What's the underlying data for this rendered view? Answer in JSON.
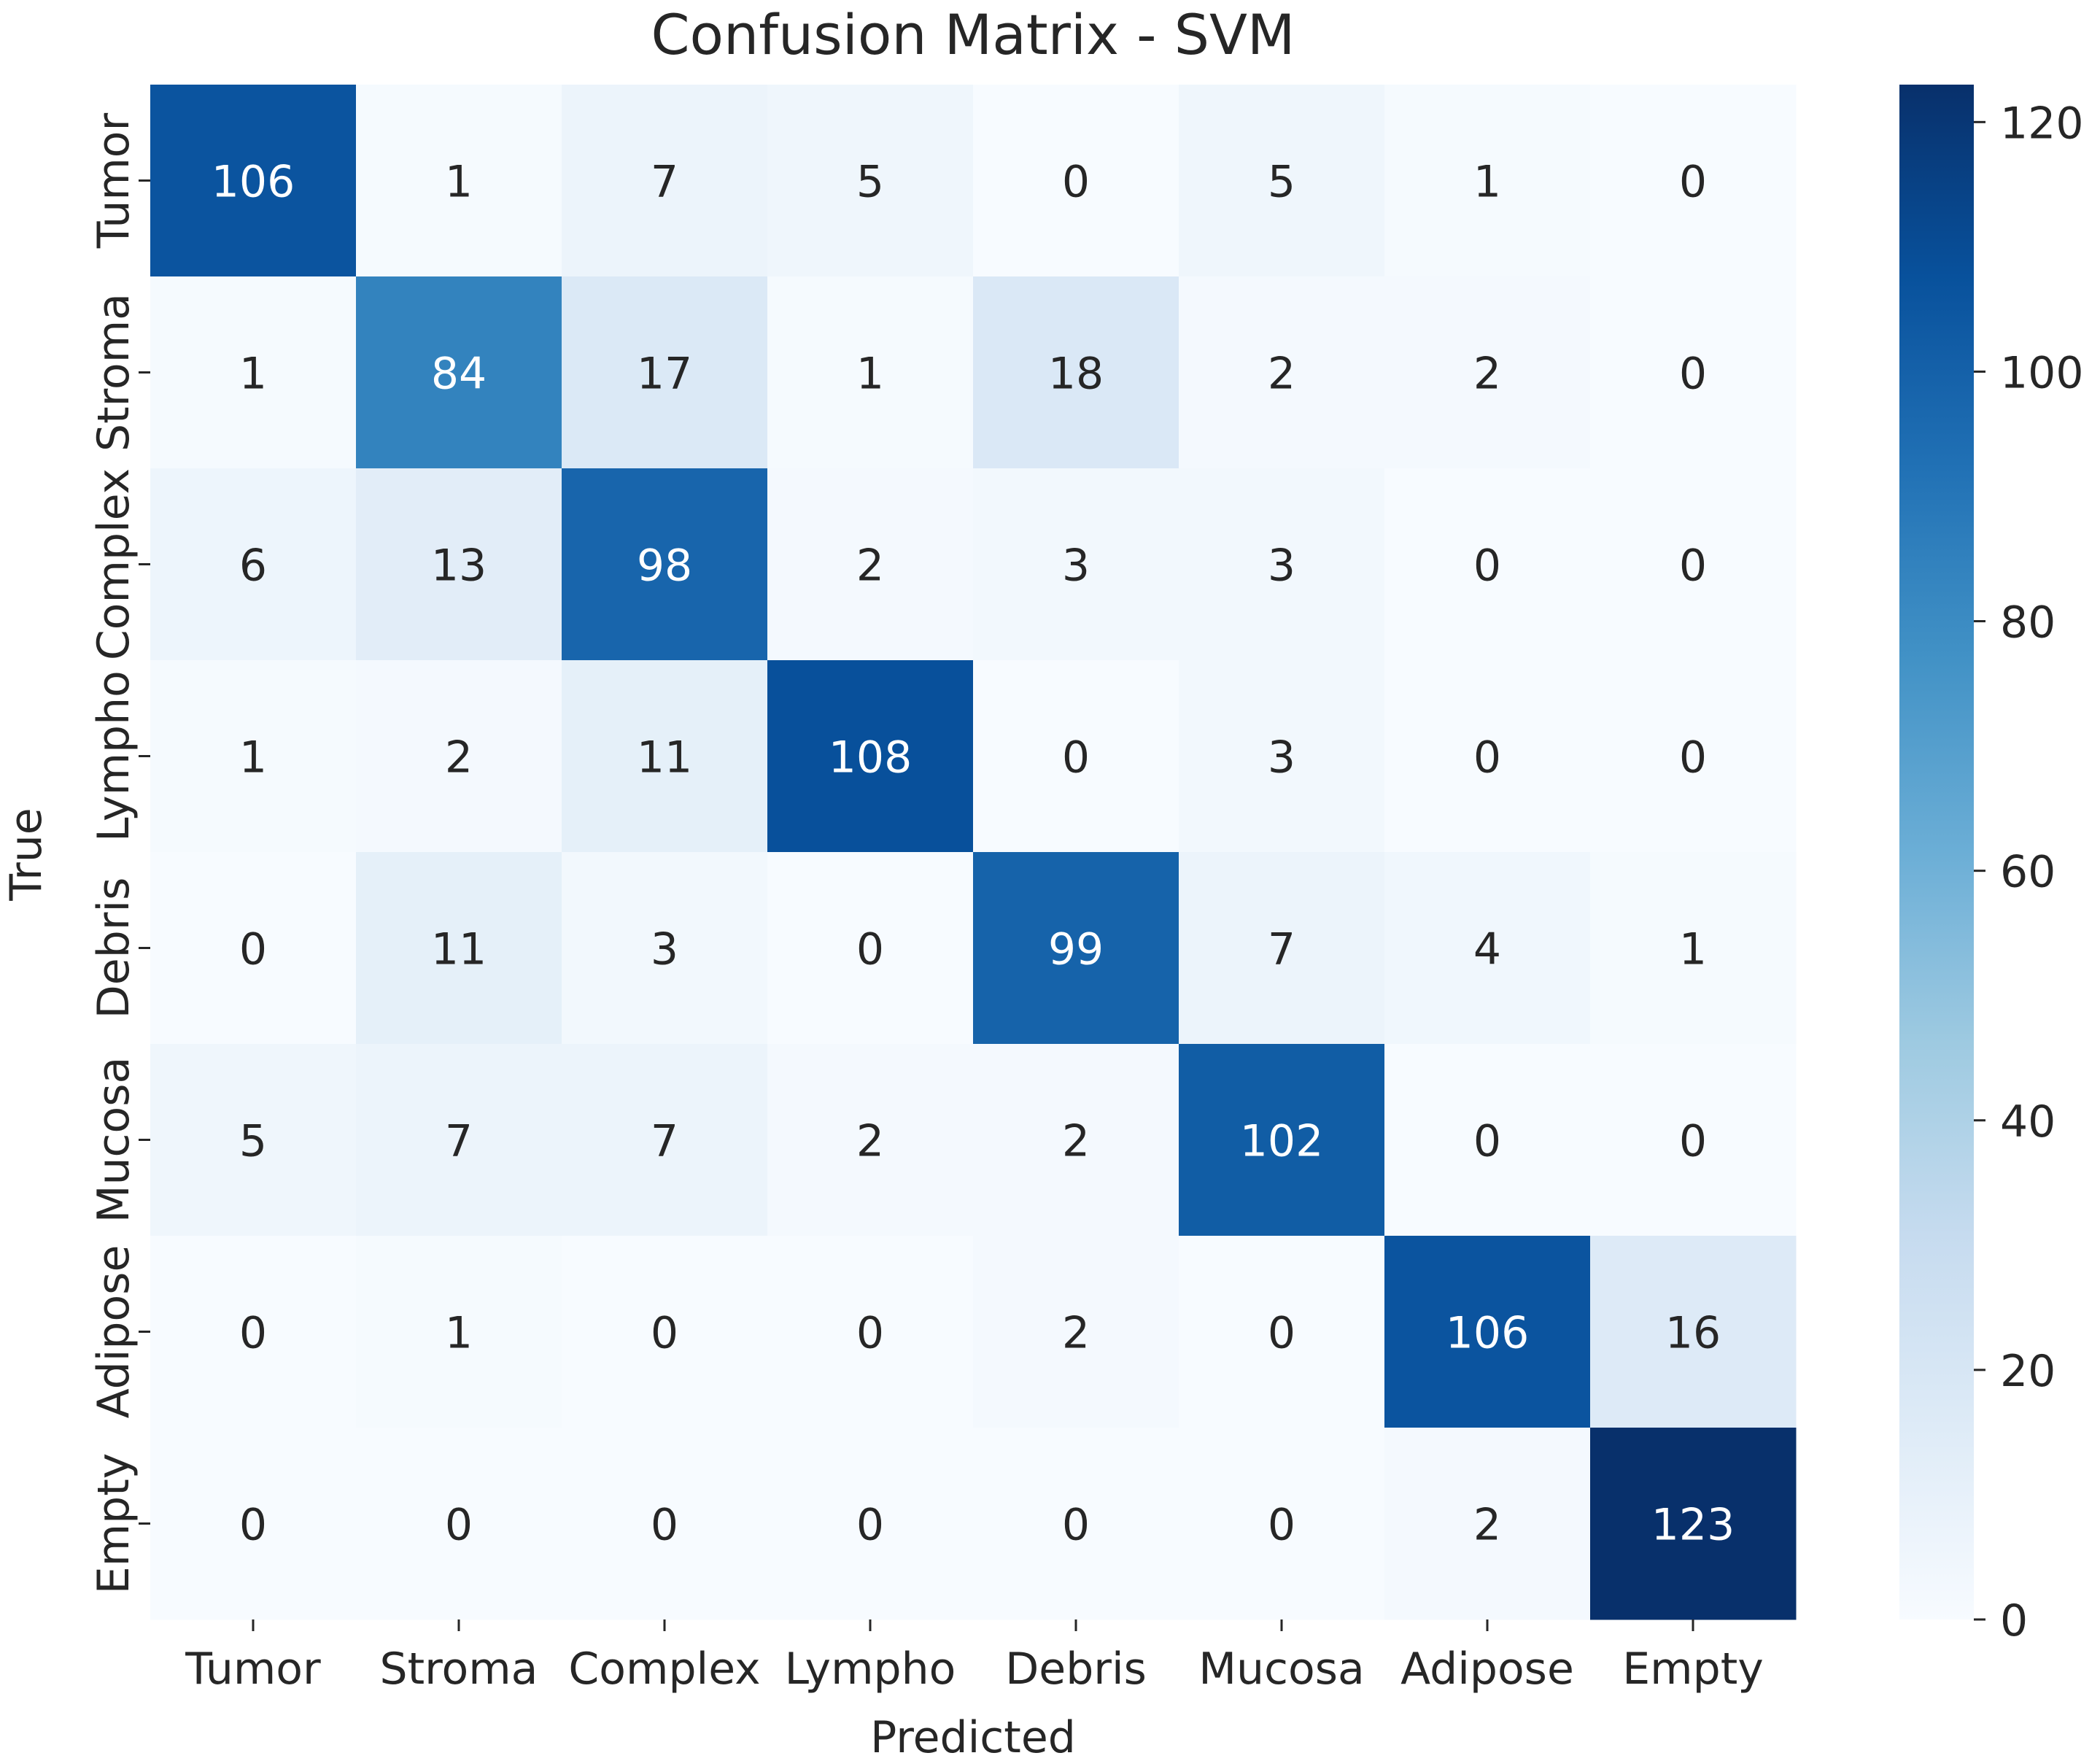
{
  "chart_data": {
    "type": "heatmap",
    "title": "Confusion Matrix - SVM",
    "xlabel": "Predicted",
    "ylabel": "True",
    "x_categories": [
      "Tumor",
      "Stroma",
      "Complex",
      "Lympho",
      "Debris",
      "Mucosa",
      "Adipose",
      "Empty"
    ],
    "y_categories": [
      "Tumor",
      "Stroma",
      "Complex",
      "Lympho",
      "Debris",
      "Mucosa",
      "Adipose",
      "Empty"
    ],
    "matrix": [
      [
        106,
        1,
        7,
        5,
        0,
        5,
        1,
        0
      ],
      [
        1,
        84,
        17,
        1,
        18,
        2,
        2,
        0
      ],
      [
        6,
        13,
        98,
        2,
        3,
        3,
        0,
        0
      ],
      [
        1,
        2,
        11,
        108,
        0,
        3,
        0,
        0
      ],
      [
        0,
        11,
        3,
        0,
        99,
        7,
        4,
        1
      ],
      [
        5,
        7,
        7,
        2,
        2,
        102,
        0,
        0
      ],
      [
        0,
        1,
        0,
        0,
        2,
        0,
        106,
        16
      ],
      [
        0,
        0,
        0,
        0,
        0,
        0,
        2,
        123
      ]
    ],
    "colormap": "Blues",
    "colorbar": {
      "range": [
        0,
        123
      ],
      "ticks": [
        0,
        20,
        40,
        60,
        80,
        100,
        120
      ],
      "position": "right"
    },
    "annotation_text_dark": "#262626",
    "annotation_text_light": "#ffffff",
    "grid": false
  }
}
